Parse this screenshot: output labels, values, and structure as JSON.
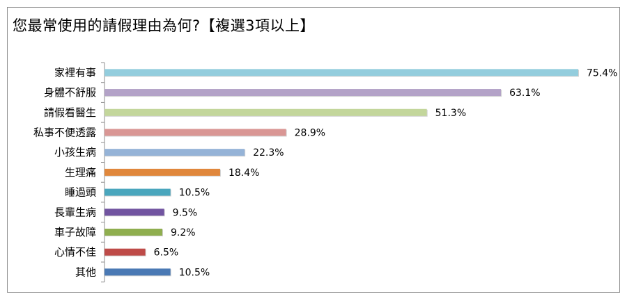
{
  "title": "您最常使用的請假理由為何?【複選3項以上】",
  "chart_data": {
    "type": "bar",
    "orientation": "horizontal",
    "title": "您最常使用的請假理由為何?【複選3項以上】",
    "categories": [
      "家裡有事",
      "身體不舒服",
      "請假看醫生",
      "私事不便透露",
      "小孩生病",
      "生理痛",
      "睡過頭",
      "長輩生病",
      "車子故障",
      "心情不佳",
      "其他"
    ],
    "values": [
      75.4,
      63.1,
      51.3,
      28.9,
      22.3,
      18.4,
      10.5,
      9.5,
      9.2,
      6.5,
      10.5
    ],
    "value_labels": [
      "75.4%",
      "63.1%",
      "51.3%",
      "28.9%",
      "22.3%",
      "18.4%",
      "10.5%",
      "9.5%",
      "9.2%",
      "6.5%",
      "10.5%"
    ],
    "colors": [
      "#93cddd",
      "#b3a2c7",
      "#c3d69b",
      "#d99694",
      "#95b3d7",
      "#e0873c",
      "#4aa6bd",
      "#7154a0",
      "#8fae4f",
      "#be4b48",
      "#4a79b4"
    ],
    "xlim": [
      0,
      100
    ],
    "grid": false,
    "legend": "none"
  }
}
